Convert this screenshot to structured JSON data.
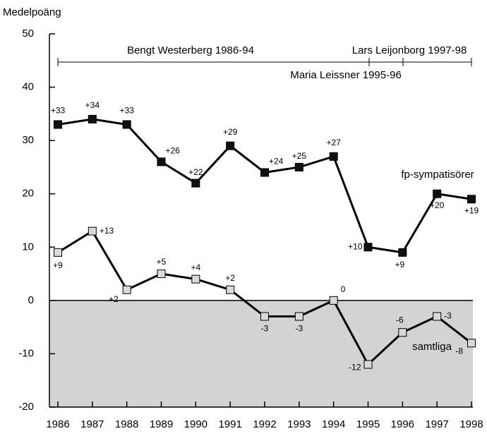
{
  "chart_data": {
    "type": "line",
    "y_label": "Medelpoäng",
    "annotations": [
      "Bengt Westerberg 1986-94",
      "Lars Leijonborg 1997-98",
      "Maria Leissner 1995-96"
    ],
    "categories": [
      "1986",
      "1987",
      "1988",
      "1989",
      "1990",
      "1991",
      "1992",
      "1993",
      "1994",
      "1995",
      "1996",
      "1997",
      "1998"
    ],
    "series": [
      {
        "name": "fp-sympatisörer",
        "color": "#111111",
        "values": [
          33,
          34,
          33,
          26,
          22,
          29,
          24,
          25,
          27,
          10,
          9,
          20,
          19
        ],
        "value_labels": [
          "+33",
          "+34",
          "+33",
          "+26",
          "+22",
          "+29",
          "+24",
          "+25",
          "+27",
          "+10",
          "+9",
          "+20",
          "+19"
        ]
      },
      {
        "name": "samtliga",
        "color": "#d9d9d9",
        "values": [
          9,
          13,
          2,
          5,
          4,
          2,
          -3,
          -3,
          0,
          -12,
          -6,
          -3,
          -8
        ],
        "value_labels": [
          "+9",
          "+13",
          "+2",
          "+5",
          "+4",
          "+2",
          "-3",
          "-3",
          "0",
          "-12",
          "-6",
          "-3",
          "-8"
        ]
      }
    ],
    "ylim": [
      -20,
      50
    ],
    "yticks": [
      -20,
      -10,
      0,
      10,
      20,
      30,
      40,
      50
    ],
    "negative_shade": "#d3d3d3"
  }
}
